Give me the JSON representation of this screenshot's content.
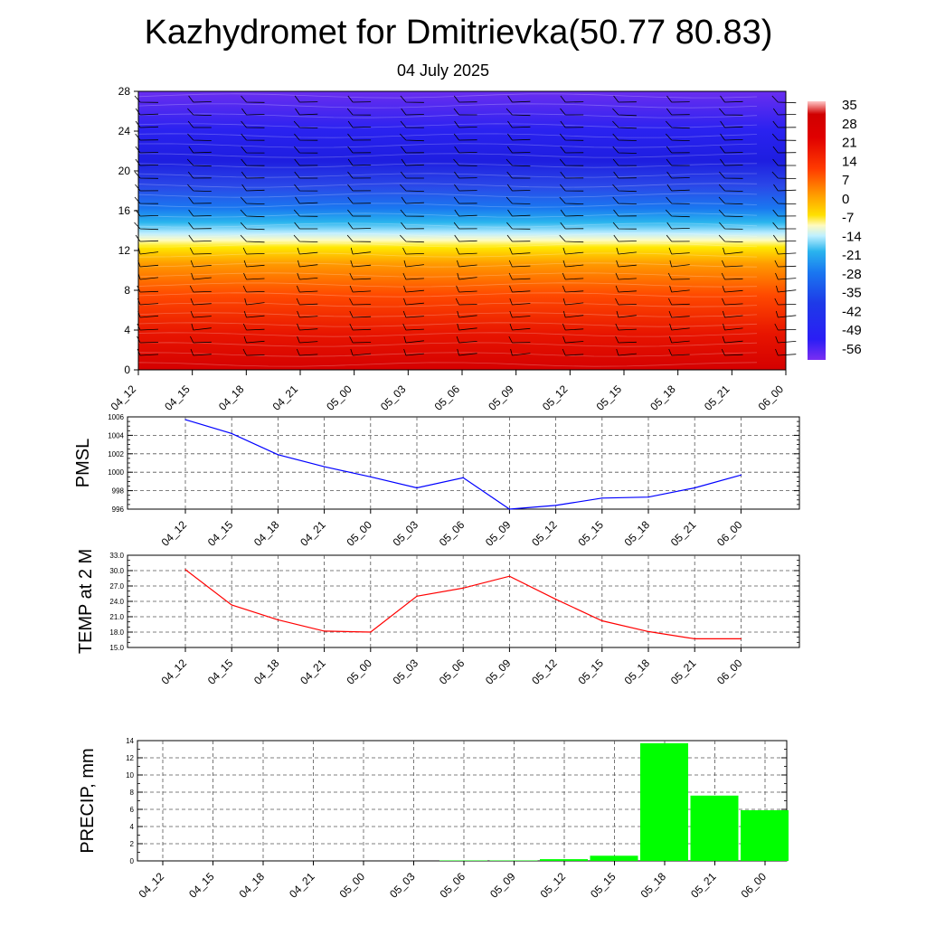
{
  "header": {
    "title": "Kazhydromet for Dmitrievka(50.77 80.83)",
    "date": "04 July 2025"
  },
  "colors": {
    "pmsl_line": "#0000ff",
    "temp_line": "#ff0000",
    "precip_bar": "#00ff00",
    "wind_barb": "#000000"
  },
  "chart_data": [
    {
      "id": "cross-section",
      "type": "heatmap",
      "title": "",
      "categories": [
        "04_12",
        "04_15",
        "04_18",
        "04_21",
        "05_00",
        "05_03",
        "05_06",
        "05_09",
        "05_12",
        "05_15",
        "05_18",
        "05_21",
        "06_00"
      ],
      "y_ticks": [
        0,
        4,
        8,
        12,
        16,
        20,
        24,
        28
      ],
      "ylim": [
        0,
        28
      ],
      "colorbar": {
        "labels": [
          "35",
          "28",
          "21",
          "14",
          "7",
          "0",
          "-7",
          "-14",
          "-21",
          "-28",
          "-35",
          "-42",
          "-49",
          "-56"
        ],
        "range": [
          -60,
          38
        ]
      },
      "overlay": "wind barbs"
    },
    {
      "id": "pmsl",
      "type": "line",
      "ylabel": "PMSL",
      "categories": [
        "04_12",
        "04_15",
        "04_18",
        "04_21",
        "05_00",
        "05_03",
        "05_06",
        "05_09",
        "05_12",
        "05_15",
        "05_18",
        "05_21",
        "06_00"
      ],
      "values": [
        1005.7,
        1004.2,
        1001.9,
        1000.6,
        999.5,
        998.3,
        999.4,
        996.0,
        996.4,
        997.2,
        997.3,
        998.3,
        999.7
      ],
      "y_ticks": [
        "1006",
        "1004",
        "1002",
        "1000",
        "998",
        "996"
      ],
      "ylim": [
        996,
        1006
      ],
      "grid": true
    },
    {
      "id": "temp",
      "type": "line",
      "ylabel": "TEMP at 2 M",
      "categories": [
        "04_12",
        "04_15",
        "04_18",
        "04_21",
        "05_00",
        "05_03",
        "05_06",
        "05_09",
        "05_12",
        "05_15",
        "05_18",
        "05_21",
        "06_00"
      ],
      "values": [
        30.2,
        23.3,
        20.4,
        18.2,
        18.0,
        25.0,
        26.6,
        28.9,
        24.4,
        20.2,
        18.1,
        16.7,
        16.7
      ],
      "y_ticks": [
        "33.0",
        "30.0",
        "27.0",
        "24.0",
        "21.0",
        "18.0",
        "15.0"
      ],
      "ylim": [
        15,
        33
      ],
      "grid": true
    },
    {
      "id": "precip",
      "type": "bar",
      "ylabel": "PRECIP, mm",
      "categories": [
        "04_12",
        "04_15",
        "04_18",
        "04_21",
        "05_00",
        "05_03",
        "05_06",
        "05_09",
        "05_12",
        "05_15",
        "05_18",
        "05_21",
        "06_00"
      ],
      "values": [
        0,
        0,
        0,
        0,
        0,
        0,
        0.05,
        0.05,
        0.2,
        0.6,
        13.7,
        7.6,
        5.9
      ],
      "y_ticks": [
        "14",
        "12",
        "10",
        "8",
        "6",
        "4",
        "2",
        "0"
      ],
      "ylim": [
        0,
        14
      ],
      "grid": true
    }
  ]
}
